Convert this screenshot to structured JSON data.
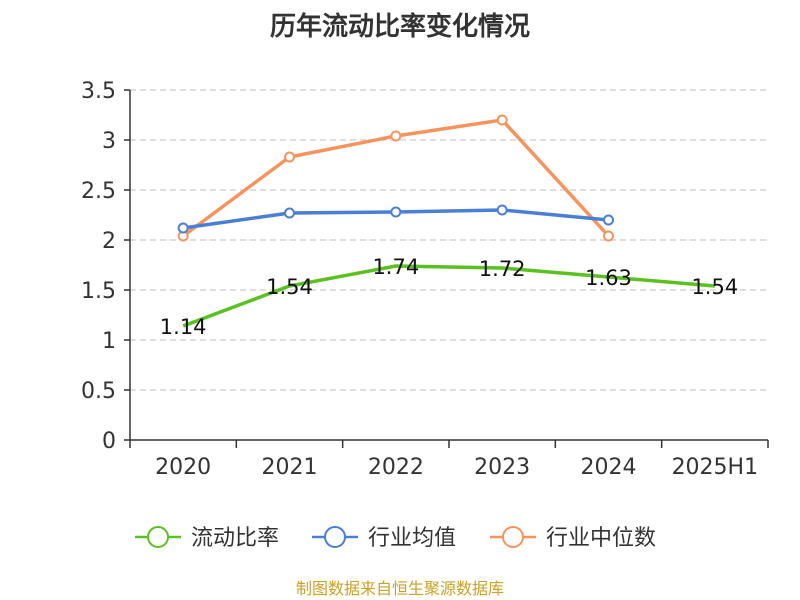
{
  "chart_data": {
    "type": "line",
    "title": "历年流动比率变化情况",
    "xlabel": "",
    "ylabel": "",
    "categories": [
      "2020",
      "2021",
      "2022",
      "2023",
      "2024",
      "2025H1"
    ],
    "ylim": [
      0,
      3.5
    ],
    "yticks": [
      "0",
      "0.5",
      "1",
      "1.5",
      "2",
      "2.5",
      "3",
      "3.5"
    ],
    "grid": true,
    "legend_position": "bottom",
    "series": [
      {
        "name": "流动比率",
        "color": "#5ac121",
        "values": [
          1.14,
          1.54,
          1.74,
          1.72,
          1.63,
          1.54
        ],
        "labels": [
          "1.14",
          "1.54",
          "1.74",
          "1.72",
          "1.63",
          "1.54"
        ],
        "markers": false
      },
      {
        "name": "行业均值",
        "color": "#4a7fd6",
        "values": [
          2.12,
          2.27,
          2.28,
          2.3,
          2.2,
          null
        ],
        "markers": true
      },
      {
        "name": "行业中位数",
        "color": "#f7935d",
        "values": [
          2.04,
          2.83,
          3.04,
          3.2,
          2.04,
          null
        ],
        "markers": true
      }
    ]
  },
  "footer": {
    "source": "制图数据来自恒生聚源数据库"
  }
}
